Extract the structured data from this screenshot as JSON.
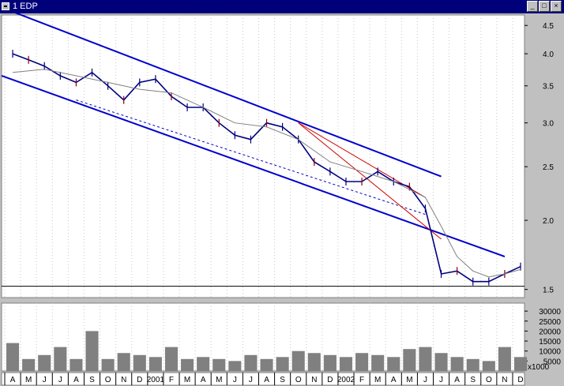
{
  "window": {
    "title": "1 EDP",
    "min_glyph": "_",
    "max_glyph": "□",
    "close_glyph": "×"
  },
  "colors": {
    "background": "#ffffff",
    "frame": "#c0c0c0",
    "titlebar": "#00007b",
    "channel": "#0000cc",
    "bars": "#000080",
    "downbars": "#8b0000",
    "ma": "#808080",
    "trend_red": "#cc0000",
    "dashed_pink": "#ff00ff",
    "volume": "#808080"
  },
  "chart_data": [
    {
      "type": "line",
      "title": "1 EDP",
      "y_scale": "log",
      "ylim": [
        1.45,
        4.7
      ],
      "y_ticks": [
        "1.5",
        "2.0",
        "2.5",
        "3.0",
        "3.5",
        "4.0",
        "4.5"
      ],
      "y_tick_values": [
        1.5,
        2.0,
        2.5,
        3.0,
        3.5,
        4.0,
        4.5
      ],
      "x_tick_labels": [
        "A",
        "M",
        "J",
        "J",
        "A",
        "S",
        "O",
        "N",
        "D",
        "2001",
        "F",
        "M",
        "A",
        "M",
        "J",
        "J",
        "A",
        "S",
        "O",
        "N",
        "D",
        "2002",
        "F",
        "M",
        "A",
        "M",
        "J",
        "J",
        "A",
        "S",
        "O",
        "N",
        "D"
      ],
      "x_months": [
        "2000-04",
        "2000-05",
        "2000-06",
        "2000-07",
        "2000-08",
        "2000-09",
        "2000-10",
        "2000-11",
        "2000-12",
        "2001-01",
        "2001-02",
        "2001-03",
        "2001-04",
        "2001-05",
        "2001-06",
        "2001-07",
        "2001-08",
        "2001-09",
        "2001-10",
        "2001-11",
        "2001-12",
        "2002-01",
        "2002-02",
        "2002-03",
        "2002-04",
        "2002-05",
        "2002-06",
        "2002-07",
        "2002-08",
        "2002-09",
        "2002-10",
        "2002-11",
        "2002-12"
      ],
      "series": [
        {
          "kind": "close",
          "x": [
            "2000-04",
            "2000-05",
            "2000-06",
            "2000-07",
            "2000-08",
            "2000-09",
            "2000-10",
            "2000-11",
            "2000-12",
            "2001-01",
            "2001-02",
            "2001-03",
            "2001-04",
            "2001-05",
            "2001-06",
            "2001-07",
            "2001-08",
            "2001-09",
            "2001-10",
            "2001-11",
            "2001-12",
            "2002-01",
            "2002-02",
            "2002-03",
            "2002-04",
            "2002-05",
            "2002-06",
            "2002-07",
            "2002-08",
            "2002-09",
            "2002-10",
            "2002-11",
            "2002-12"
          ],
          "values": [
            4.0,
            3.9,
            3.8,
            3.65,
            3.55,
            3.7,
            3.5,
            3.3,
            3.55,
            3.6,
            3.35,
            3.2,
            3.2,
            3.0,
            2.85,
            2.8,
            3.0,
            2.95,
            2.8,
            2.55,
            2.45,
            2.35,
            2.35,
            2.45,
            2.35,
            2.3,
            2.1,
            1.6,
            1.62,
            1.55,
            1.55,
            1.6,
            1.65
          ]
        },
        {
          "kind": "moving-average",
          "x": [
            "2000-04",
            "2000-06",
            "2000-08",
            "2000-10",
            "2000-12",
            "2001-02",
            "2001-04",
            "2001-06",
            "2001-08",
            "2001-10",
            "2001-12",
            "2002-02",
            "2002-04",
            "2002-06",
            "2002-07",
            "2002-08",
            "2002-09",
            "2002-10",
            "2002-11",
            "2002-12"
          ],
          "values": [
            3.7,
            3.75,
            3.65,
            3.55,
            3.45,
            3.4,
            3.2,
            3.0,
            2.95,
            2.8,
            2.55,
            2.45,
            2.35,
            2.2,
            1.95,
            1.72,
            1.62,
            1.58,
            1.6,
            1.63
          ]
        }
      ],
      "annotations": [
        {
          "kind": "channel-upper",
          "from": {
            "x": "2000-04",
            "y": 4.85
          },
          "to": {
            "x": "2002-07",
            "y": 2.4
          }
        },
        {
          "kind": "channel-lower",
          "from": {
            "x": "2000-04",
            "y": 3.65
          },
          "to": {
            "x": "2002-11",
            "y": 1.72
          }
        },
        {
          "kind": "channel-mid-dashed",
          "from": {
            "x": "2000-08",
            "y": 3.3
          },
          "to": {
            "x": "2002-06",
            "y": 2.05
          }
        },
        {
          "kind": "trend-red",
          "from": {
            "x": "2001-10",
            "y": 3.0
          },
          "to": {
            "x": "2002-06",
            "y": 2.2
          }
        },
        {
          "kind": "trend-red",
          "from": {
            "x": "2001-10",
            "y": 3.0
          },
          "to": {
            "x": "2002-07",
            "y": 1.85
          }
        },
        {
          "kind": "horizontal",
          "from": {
            "x": "2000-04",
            "y": 1.52
          },
          "to": {
            "x": "2002-12",
            "y": 1.52
          }
        }
      ]
    },
    {
      "type": "bar",
      "y_ticks": [
        "5000",
        "10000",
        "15000",
        "20000",
        "25000",
        "30000"
      ],
      "y_tick_values": [
        5000,
        10000,
        15000,
        20000,
        25000,
        30000
      ],
      "unit_label": "x1000",
      "ylim": [
        0,
        34000
      ],
      "values": [
        14000,
        6000,
        8000,
        12000,
        6000,
        20000,
        6000,
        9000,
        8000,
        7000,
        12000,
        6000,
        7000,
        6000,
        5000,
        8000,
        6000,
        7000,
        10000,
        9000,
        8000,
        7000,
        9000,
        8000,
        7000,
        11000,
        12000,
        9000,
        7000,
        6000,
        5000,
        12000,
        7000
      ]
    }
  ]
}
